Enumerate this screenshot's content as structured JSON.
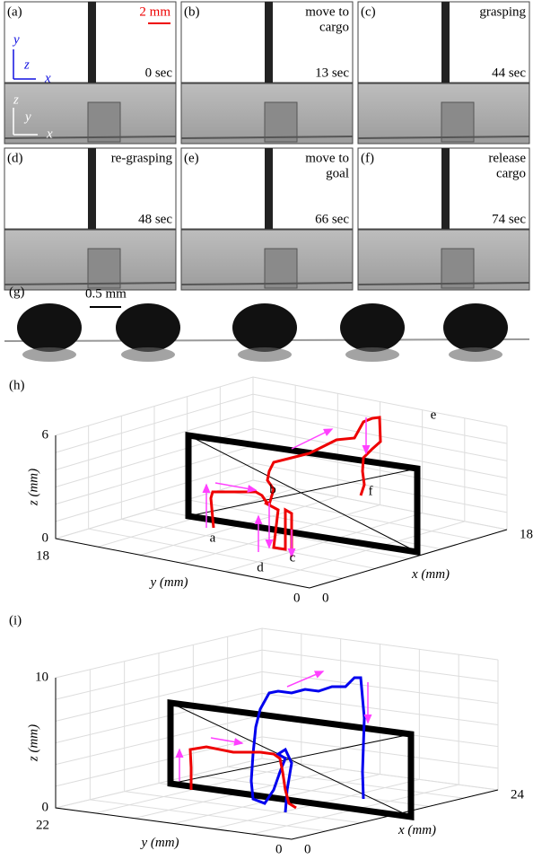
{
  "panels": [
    {
      "label": "(a)",
      "caption": [],
      "time": "0 sec"
    },
    {
      "label": "(b)",
      "caption": [
        "move to",
        "cargo"
      ],
      "time": "13 sec"
    },
    {
      "label": "(c)",
      "caption": [
        "grasping"
      ],
      "time": "44 sec"
    },
    {
      "label": "(d)",
      "caption": [
        "re-grasping"
      ],
      "time": "48 sec"
    },
    {
      "label": "(e)",
      "caption": [
        "move to",
        "goal"
      ],
      "time": "66 sec"
    },
    {
      "label": "(f)",
      "caption": [
        "release",
        "cargo"
      ],
      "time": "74 sec"
    }
  ],
  "scale_bar": "2 mm",
  "frame_axes": {
    "top": [
      "y",
      "z",
      "x"
    ],
    "bottom": [
      "z",
      "y",
      "x"
    ]
  },
  "panel_g": {
    "label": "(g)",
    "scale_bar": "0.5 mm"
  },
  "plot_h": {
    "label": "(h)",
    "z_label": "z (mm)",
    "y_label": "y (mm)",
    "x_label": "x (mm)",
    "z_ticks": [
      "0",
      "6"
    ],
    "y_ticks": [
      "18",
      "0"
    ],
    "x_ticks": [
      "0",
      "18"
    ],
    "points": [
      "a",
      "b",
      "c",
      "d",
      "e",
      "f"
    ]
  },
  "plot_i": {
    "label": "(i)",
    "z_label": "z (mm)",
    "y_label": "y (mm)",
    "x_label": "x (mm)",
    "z_ticks": [
      "0",
      "10"
    ],
    "y_ticks": [
      "22",
      "0"
    ],
    "x_ticks": [
      "0",
      "24"
    ]
  }
}
